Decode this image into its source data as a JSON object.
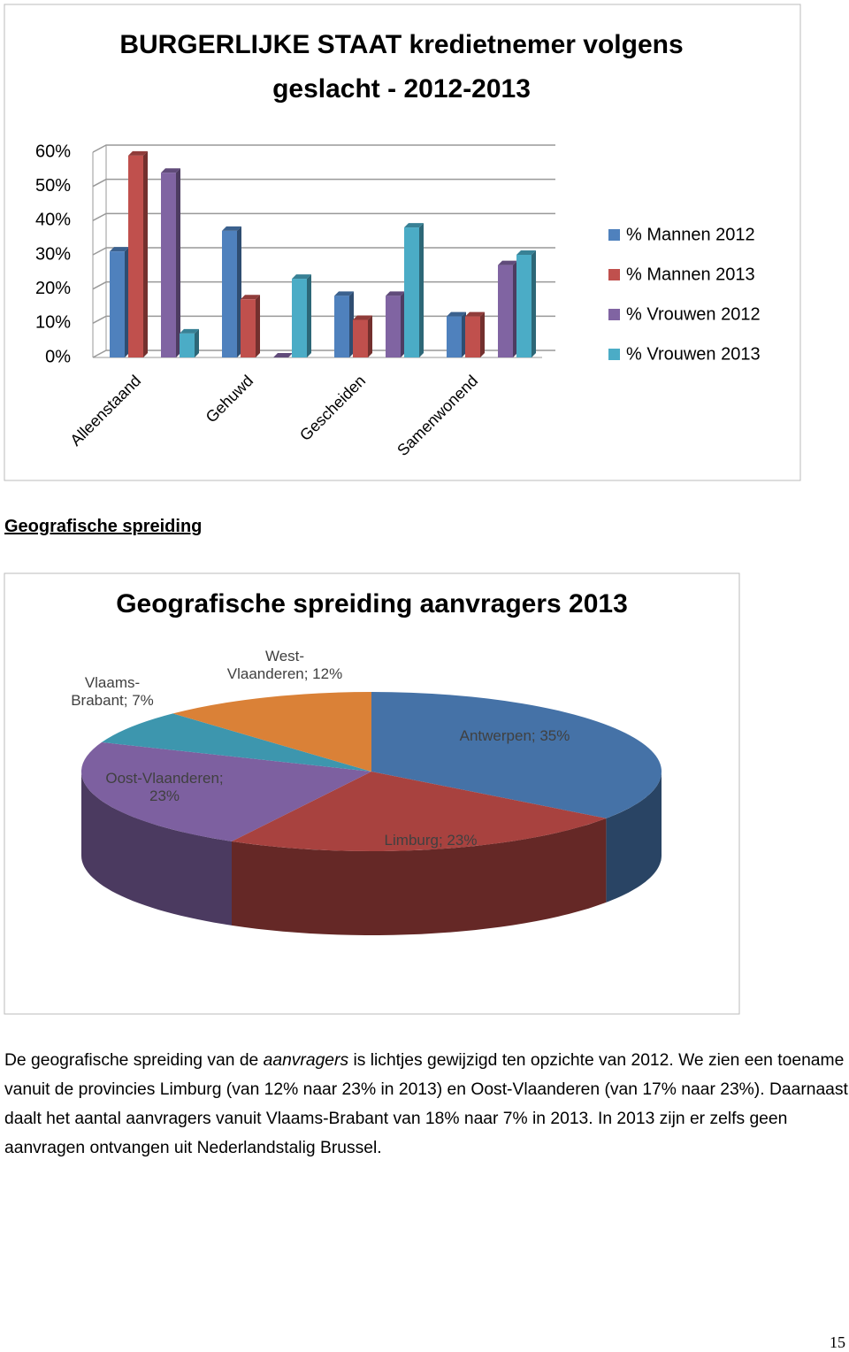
{
  "chart_data": [
    {
      "type": "bar3d",
      "title": "BURGERLIJKE STAAT kredietnemer volgens geslacht - 2012-2013",
      "categories": [
        "Alleenstaand",
        "Gehuwd",
        "Gescheiden",
        "Samenwonend"
      ],
      "series": [
        {
          "name": "% Mannen 2012",
          "color": "#4f81bd",
          "values": [
            31,
            37,
            18,
            12
          ]
        },
        {
          "name": "% Mannen 2013",
          "color": "#c0504d",
          "values": [
            59,
            17,
            11,
            12
          ]
        },
        {
          "name": "% Vrouwen 2012",
          "color": "#8064a2",
          "values": [
            54,
            0,
            18,
            27
          ]
        },
        {
          "name": "% Vrouwen 2013",
          "color": "#4bacc6",
          "values": [
            7,
            23,
            38,
            30
          ]
        }
      ],
      "ylim": [
        0,
        60
      ],
      "yticks": [
        {
          "value": 0,
          "label": "0%"
        },
        {
          "value": 10,
          "label": "10%"
        },
        {
          "value": 20,
          "label": "20%"
        },
        {
          "value": 30,
          "label": "30%"
        },
        {
          "value": 40,
          "label": "40%"
        },
        {
          "value": 50,
          "label": "50%"
        },
        {
          "value": 60,
          "label": "60%"
        }
      ],
      "grid": true,
      "legend": "right"
    },
    {
      "type": "pie3d",
      "title": "Geografische spreiding aanvragers 2013",
      "values": [
        35,
        23,
        23,
        7,
        12
      ],
      "value_labels": [
        "Antwerpen; 35%",
        "Limburg; 23%",
        "Oost-Vlaanderen;\n23%",
        "Vlaams-\nBrabant; 7%",
        "West-\nVlaanderen; 12%"
      ],
      "colors": [
        "#4572a7",
        "#a8423f",
        "#7d60a0",
        "#3d96ae",
        "#da8137"
      ]
    }
  ],
  "section_heading": "Geografische spreiding",
  "paragraph": [
    "De geografische spreiding van de ",
    "aanvragers",
    " is lichtjes gewijzigd ten opzichte van 2012. We zien een toename vanuit de provincies Limburg (van 12% naar 23% in 2013) en Oost-Vlaanderen (van 17% naar 23%). Daarnaast daalt het aantal aanvragers vanuit Vlaams-Brabant van 18% naar 7% in 2013. In 2013 zijn er zelfs geen aanvragen ontvangen uit Nederlandstalig Brussel."
  ],
  "page_number": "15"
}
